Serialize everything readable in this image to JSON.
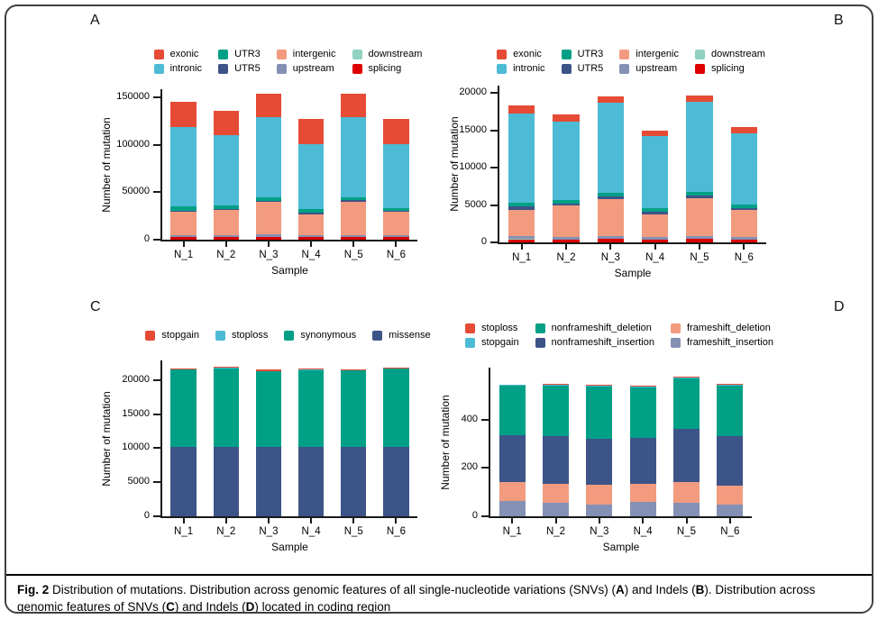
{
  "figure": {
    "caption_segments": [
      {
        "text": "Fig. 2",
        "bold": true
      },
      {
        "text": "  Distribution of mutations. Distribution across genomic features of all single-nucleotide variations (SNVs) (",
        "bold": false
      },
      {
        "text": "A",
        "bold": true
      },
      {
        "text": ") and Indels (",
        "bold": false
      },
      {
        "text": "B",
        "bold": true
      },
      {
        "text": "). Distribution across genomic features of SNVs (",
        "bold": false
      },
      {
        "text": "C",
        "bold": true
      },
      {
        "text": ") and Indels (",
        "bold": false
      },
      {
        "text": "D",
        "bold": true
      },
      {
        "text": ") located in coding region",
        "bold": false
      }
    ]
  },
  "chart_data": [
    {
      "type": "bar",
      "stacked": true,
      "panel_label": "A",
      "xlabel": "Sample",
      "ylabel": "Number of mutation",
      "categories": [
        "N_1",
        "N_2",
        "N_3",
        "N_4",
        "N_5",
        "N_6"
      ],
      "ylim": [
        0,
        158500
      ],
      "yticks": [
        0,
        50000,
        100000,
        150000
      ],
      "stack_order": "bottom_to_top",
      "series": [
        {
          "name": "splicing",
          "color": "#DC0000",
          "values": [
            2500,
            2500,
            2500,
            2500,
            2500,
            2500
          ]
        },
        {
          "name": "downstream",
          "color": "#91D1C2",
          "values": [
            300,
            300,
            300,
            300,
            300,
            300
          ]
        },
        {
          "name": "upstream",
          "color": "#8491B4",
          "values": [
            2200,
            2200,
            2700,
            2200,
            2200,
            2200
          ]
        },
        {
          "name": "intergenic",
          "color": "#F39B7F",
          "values": [
            24000,
            26000,
            34000,
            22000,
            35000,
            24000
          ]
        },
        {
          "name": "UTR5",
          "color": "#3C5488",
          "values": [
            1500,
            1500,
            1500,
            1500,
            1500,
            1500
          ]
        },
        {
          "name": "UTR3",
          "color": "#00A087",
          "values": [
            4500,
            4000,
            4000,
            4000,
            3000,
            3000
          ]
        },
        {
          "name": "intronic",
          "color": "#4DBBD5",
          "values": [
            84000,
            73500,
            84000,
            68500,
            84500,
            67000
          ]
        },
        {
          "name": "exonic",
          "color": "#E64B35",
          "values": [
            26000,
            26000,
            25000,
            26000,
            25000,
            26500
          ]
        }
      ],
      "legend_columns": [
        [
          {
            "label": "exonic",
            "color": "#E64B35"
          },
          {
            "label": "intronic",
            "color": "#4DBBD5"
          }
        ],
        [
          {
            "label": "UTR3",
            "color": "#00A087"
          },
          {
            "label": "UTR5",
            "color": "#3C5488"
          }
        ],
        [
          {
            "label": "intergenic",
            "color": "#F39B7F"
          },
          {
            "label": "upstream",
            "color": "#8491B4"
          }
        ],
        [
          {
            "label": "downstream",
            "color": "#91D1C2"
          },
          {
            "label": "splicing",
            "color": "#DC0000"
          }
        ]
      ]
    },
    {
      "type": "bar",
      "stacked": true,
      "panel_label": "B",
      "xlabel": "Sample",
      "ylabel": "Number of mutation",
      "categories": [
        "N_1",
        "N_2",
        "N_3",
        "N_4",
        "N_5",
        "N_6"
      ],
      "ylim": [
        0,
        21000
      ],
      "yticks": [
        0,
        5000,
        10000,
        15000,
        20000
      ],
      "stack_order": "bottom_to_top",
      "series": [
        {
          "name": "splicing",
          "color": "#DC0000",
          "values": [
            400,
            350,
            450,
            350,
            450,
            350
          ]
        },
        {
          "name": "downstream",
          "color": "#91D1C2",
          "values": [
            50,
            50,
            50,
            50,
            50,
            50
          ]
        },
        {
          "name": "upstream",
          "color": "#8491B4",
          "values": [
            350,
            300,
            400,
            300,
            400,
            300
          ]
        },
        {
          "name": "intergenic",
          "color": "#F39B7F",
          "values": [
            3600,
            4200,
            4900,
            3100,
            5000,
            3600
          ]
        },
        {
          "name": "UTR5",
          "color": "#3C5488",
          "values": [
            400,
            350,
            400,
            350,
            400,
            350
          ]
        },
        {
          "name": "UTR3",
          "color": "#00A087",
          "values": [
            500,
            450,
            500,
            450,
            500,
            450
          ]
        },
        {
          "name": "intronic",
          "color": "#4DBBD5",
          "values": [
            12000,
            10500,
            12000,
            9600,
            12000,
            9500
          ]
        },
        {
          "name": "exonic",
          "color": "#E64B35",
          "values": [
            1000,
            1000,
            900,
            800,
            900,
            800
          ]
        }
      ],
      "legend_columns": [
        [
          {
            "label": "exonic",
            "color": "#E64B35"
          },
          {
            "label": "intronic",
            "color": "#4DBBD5"
          }
        ],
        [
          {
            "label": "UTR3",
            "color": "#00A087"
          },
          {
            "label": "UTR5",
            "color": "#3C5488"
          }
        ],
        [
          {
            "label": "intergenic",
            "color": "#F39B7F"
          },
          {
            "label": "upstream",
            "color": "#8491B4"
          }
        ],
        [
          {
            "label": "downstream",
            "color": "#91D1C2"
          },
          {
            "label": "splicing",
            "color": "#DC0000"
          }
        ]
      ]
    },
    {
      "type": "bar",
      "stacked": true,
      "panel_label": "C",
      "xlabel": "Sample",
      "ylabel": "Number of mutation",
      "categories": [
        "N_1",
        "N_2",
        "N_3",
        "N_4",
        "N_5",
        "N_6"
      ],
      "ylim": [
        0,
        22900
      ],
      "yticks": [
        0,
        5000,
        10000,
        15000,
        20000
      ],
      "stack_order": "bottom_to_top",
      "series": [
        {
          "name": "missense",
          "color": "#3C5488",
          "values": [
            10200,
            10250,
            10150,
            10200,
            10150,
            10250
          ]
        },
        {
          "name": "synonymous",
          "color": "#00A087",
          "values": [
            11400,
            11500,
            11200,
            11300,
            11250,
            11400
          ]
        },
        {
          "name": "stoploss",
          "color": "#4DBBD5",
          "values": [
            30,
            30,
            30,
            30,
            30,
            30
          ]
        },
        {
          "name": "stopgain",
          "color": "#E64B35",
          "values": [
            150,
            150,
            140,
            140,
            140,
            150
          ]
        }
      ],
      "legend_columns": [
        [
          {
            "label": "stopgain",
            "color": "#E64B35"
          }
        ],
        [
          {
            "label": "stoploss",
            "color": "#4DBBD5"
          }
        ],
        [
          {
            "label": "synonymous",
            "color": "#00A087"
          }
        ],
        [
          {
            "label": "missense",
            "color": "#3C5488"
          }
        ]
      ]
    },
    {
      "type": "bar",
      "stacked": true,
      "panel_label": "D",
      "xlabel": "Sample",
      "ylabel": "Number of mutation",
      "categories": [
        "N_1",
        "N_2",
        "N_3",
        "N_4",
        "N_5",
        "N_6"
      ],
      "ylim": [
        0,
        615
      ],
      "yticks": [
        0,
        200,
        400
      ],
      "stack_order": "bottom_to_top",
      "series": [
        {
          "name": "frameshift_insertion",
          "color": "#8491B4",
          "values": [
            62,
            57,
            50,
            58,
            55,
            50
          ]
        },
        {
          "name": "frameshift_deletion",
          "color": "#F39B7F",
          "values": [
            78,
            78,
            82,
            77,
            85,
            75
          ]
        },
        {
          "name": "nonframeshift_insertion",
          "color": "#3C5488",
          "values": [
            195,
            195,
            190,
            190,
            220,
            205
          ]
        },
        {
          "name": "nonframeshift_deletion",
          "color": "#00A087",
          "values": [
            205,
            212,
            215,
            210,
            212,
            212
          ]
        },
        {
          "name": "stopgain",
          "color": "#4DBBD5",
          "values": [
            3,
            3,
            3,
            2,
            3,
            3
          ]
        },
        {
          "name": "stoploss",
          "color": "#E64B35",
          "values": [
            3,
            3,
            3,
            2,
            3,
            3
          ]
        }
      ],
      "legend_columns": [
        [
          {
            "label": "stoploss",
            "color": "#E64B35"
          },
          {
            "label": "stopgain",
            "color": "#4DBBD5"
          }
        ],
        [
          {
            "label": "nonframeshift_deletion",
            "color": "#00A087"
          },
          {
            "label": "nonframeshift_insertion",
            "color": "#3C5488"
          }
        ],
        [
          {
            "label": "frameshift_deletion",
            "color": "#F39B7F"
          },
          {
            "label": "frameshift_insertion",
            "color": "#8491B4"
          }
        ]
      ]
    }
  ]
}
